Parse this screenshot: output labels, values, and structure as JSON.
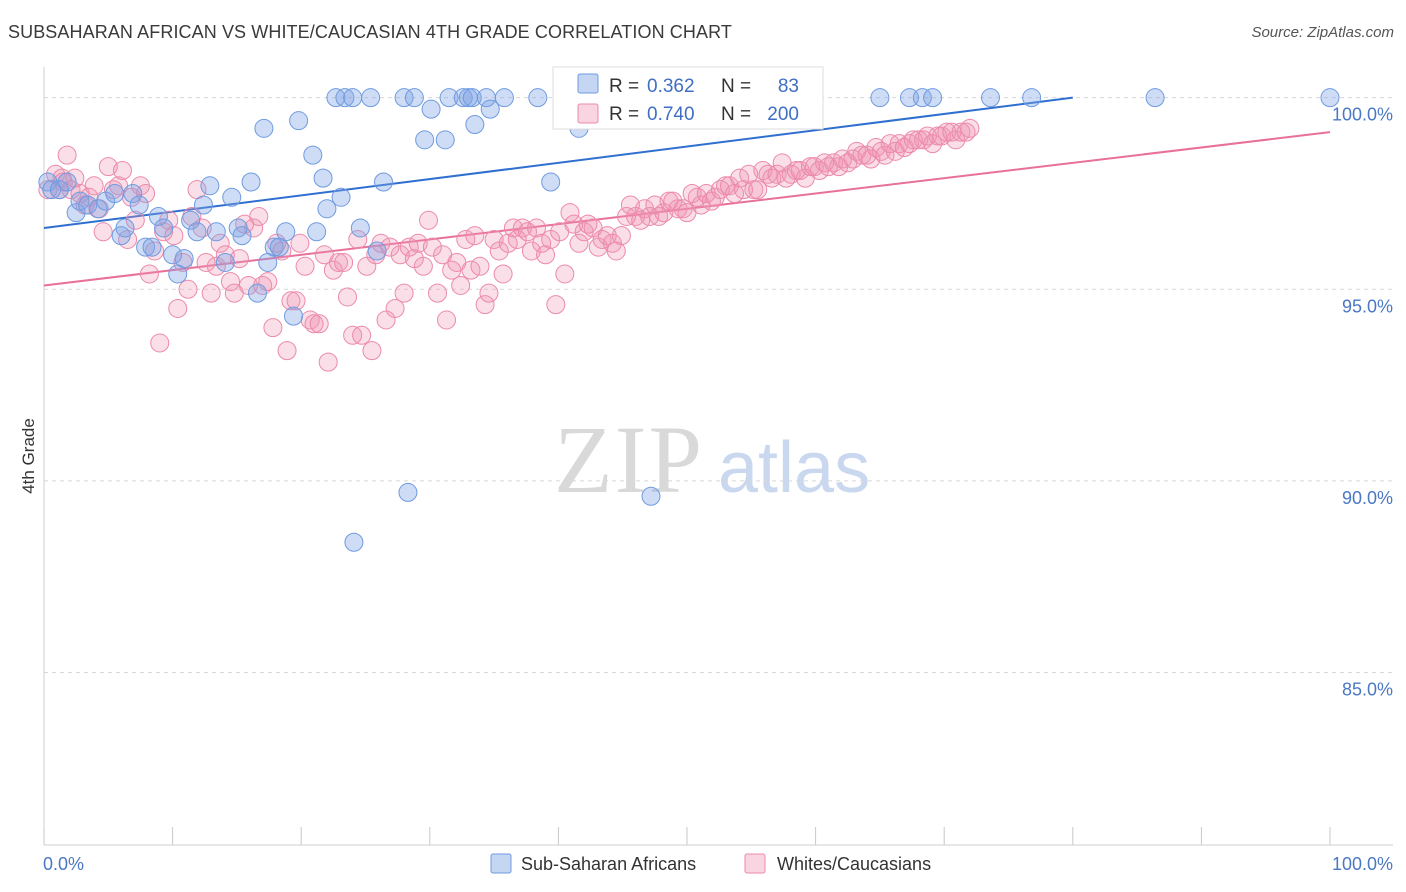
{
  "title": "SUBSAHARAN AFRICAN VS WHITE/CAUCASIAN 4TH GRADE CORRELATION CHART",
  "source": "Source: ZipAtlas.com",
  "watermark": {
    "zip": "ZIP",
    "atlas": "atlas"
  },
  "colors": {
    "blue": "#6f9be0",
    "blue_fill": "rgba(126,164,228,0.38)",
    "blue_line": "#2f6fd0",
    "pink": "#ec8aaa",
    "pink_fill": "rgba(240,150,180,0.30)",
    "pink_line": "#e8709a",
    "tick_label": "#4a78c4",
    "grid": "#d8d8d8"
  },
  "chart_data": {
    "type": "scatter",
    "xlabel": "",
    "ylabel": "4th Grade",
    "xlim": [
      0,
      100
    ],
    "ylim": [
      80.5,
      100.8
    ],
    "x_tick_labels": [
      "0.0%",
      "100.0%"
    ],
    "y_ticks": [
      85.0,
      90.0,
      95.0,
      100.0
    ],
    "y_tick_labels": [
      "85.0%",
      "90.0%",
      "95.0%",
      "100.0%"
    ],
    "grid": true,
    "legend": {
      "placement": "top-center",
      "entries": [
        {
          "r_label": "R =",
          "r_value": "0.362",
          "n_label": "N =",
          "n_value": "83"
        },
        {
          "r_label": "R =",
          "r_value": "0.740",
          "n_label": "N =",
          "n_value": "200"
        }
      ]
    },
    "series": [
      {
        "name": "Sub-Saharan Africans",
        "trend": {
          "x": [
            0,
            80
          ],
          "y": [
            96.6,
            100.0
          ]
        },
        "points": [
          [
            0.3,
            97.8
          ],
          [
            0.6,
            97.6
          ],
          [
            1.2,
            97.6
          ],
          [
            1.8,
            97.8
          ],
          [
            2.5,
            97.0
          ],
          [
            2.8,
            97.3
          ],
          [
            3.4,
            97.2
          ],
          [
            4.2,
            97.1
          ],
          [
            4.8,
            97.3
          ],
          [
            5.5,
            97.5
          ],
          [
            6.0,
            96.4
          ],
          [
            6.3,
            96.6
          ],
          [
            6.9,
            97.5
          ],
          [
            7.4,
            97.2
          ],
          [
            7.9,
            96.1
          ],
          [
            8.4,
            96.1
          ],
          [
            8.9,
            96.9
          ],
          [
            9.3,
            96.6
          ],
          [
            10.0,
            95.9
          ],
          [
            10.4,
            95.4
          ],
          [
            10.9,
            95.8
          ],
          [
            11.4,
            96.8
          ],
          [
            11.9,
            96.5
          ],
          [
            12.4,
            97.2
          ],
          [
            12.9,
            97.7
          ],
          [
            13.4,
            96.5
          ],
          [
            14.1,
            95.7
          ],
          [
            14.6,
            97.4
          ],
          [
            15.1,
            96.6
          ],
          [
            15.4,
            96.4
          ],
          [
            16.1,
            97.8
          ],
          [
            16.6,
            94.9
          ],
          [
            17.1,
            99.2
          ],
          [
            17.4,
            95.7
          ],
          [
            17.9,
            96.1
          ],
          [
            18.3,
            96.1
          ],
          [
            18.8,
            96.5
          ],
          [
            19.4,
            94.3
          ],
          [
            19.8,
            99.4
          ],
          [
            20.9,
            98.5
          ],
          [
            21.2,
            96.5
          ],
          [
            21.7,
            97.9
          ],
          [
            22.0,
            97.1
          ],
          [
            22.7,
            100.0
          ],
          [
            23.1,
            97.4
          ],
          [
            23.4,
            100.0
          ],
          [
            24.0,
            100.0
          ],
          [
            24.1,
            88.4
          ],
          [
            24.6,
            96.6
          ],
          [
            25.4,
            100.0
          ],
          [
            25.9,
            96.0
          ],
          [
            26.4,
            97.8
          ],
          [
            28.0,
            100.0
          ],
          [
            28.3,
            89.7
          ],
          [
            28.8,
            100.0
          ],
          [
            29.6,
            98.9
          ],
          [
            30.1,
            99.7
          ],
          [
            31.2,
            98.9
          ],
          [
            31.5,
            100.0
          ],
          [
            32.6,
            100.0
          ],
          [
            33.0,
            100.0
          ],
          [
            33.3,
            100.0
          ],
          [
            33.5,
            99.3
          ],
          [
            34.4,
            100.0
          ],
          [
            34.7,
            99.7
          ],
          [
            35.8,
            100.0
          ],
          [
            38.4,
            100.0
          ],
          [
            39.4,
            97.8
          ],
          [
            41.6,
            99.2
          ],
          [
            44.4,
            100.0
          ],
          [
            47.2,
            89.6
          ],
          [
            53.1,
            100.0
          ],
          [
            55.8,
            100.0
          ],
          [
            57.3,
            100.0
          ],
          [
            58.7,
            100.0
          ],
          [
            65.0,
            100.0
          ],
          [
            67.3,
            100.0
          ],
          [
            68.3,
            100.0
          ],
          [
            69.1,
            100.0
          ],
          [
            73.6,
            100.0
          ],
          [
            76.8,
            100.0
          ],
          [
            86.4,
            100.0
          ],
          [
            100.0,
            100.0
          ]
        ]
      },
      {
        "name": "Whites/Caucasians",
        "trend": {
          "x": [
            0,
            100
          ],
          "y": [
            95.1,
            99.1
          ]
        },
        "points": [
          [
            0.3,
            97.6
          ],
          [
            0.9,
            98.0
          ],
          [
            1.2,
            97.6
          ],
          [
            1.4,
            97.9
          ],
          [
            1.5,
            97.8
          ],
          [
            1.8,
            98.5
          ],
          [
            2.1,
            97.6
          ],
          [
            2.4,
            97.9
          ],
          [
            2.8,
            97.5
          ],
          [
            3.2,
            97.2
          ],
          [
            3.5,
            97.4
          ],
          [
            3.9,
            97.7
          ],
          [
            4.3,
            97.1
          ],
          [
            4.6,
            96.5
          ],
          [
            5.0,
            98.2
          ],
          [
            5.4,
            97.6
          ],
          [
            5.8,
            97.7
          ],
          [
            6.1,
            98.1
          ],
          [
            6.5,
            96.3
          ],
          [
            6.8,
            97.4
          ],
          [
            7.1,
            96.8
          ],
          [
            7.5,
            97.7
          ],
          [
            7.9,
            97.5
          ],
          [
            8.2,
            95.4
          ],
          [
            8.6,
            96.0
          ],
          [
            9.0,
            93.6
          ],
          [
            9.3,
            96.5
          ],
          [
            9.7,
            96.8
          ],
          [
            10.1,
            96.4
          ],
          [
            10.4,
            94.5
          ],
          [
            10.8,
            95.7
          ],
          [
            11.2,
            95.0
          ],
          [
            11.5,
            96.9
          ],
          [
            11.9,
            97.6
          ],
          [
            12.3,
            96.6
          ],
          [
            12.6,
            95.7
          ],
          [
            13.0,
            94.9
          ],
          [
            13.4,
            95.6
          ],
          [
            13.7,
            96.2
          ],
          [
            14.1,
            95.9
          ],
          [
            14.5,
            95.2
          ],
          [
            14.8,
            94.9
          ],
          [
            15.2,
            95.8
          ],
          [
            15.6,
            96.7
          ],
          [
            15.9,
            95.1
          ],
          [
            16.3,
            96.6
          ],
          [
            16.7,
            96.9
          ],
          [
            17.0,
            95.1
          ],
          [
            17.4,
            95.2
          ],
          [
            17.8,
            94.0
          ],
          [
            18.1,
            96.2
          ],
          [
            18.5,
            96.0
          ],
          [
            18.9,
            93.4
          ],
          [
            19.2,
            94.7
          ],
          [
            19.6,
            94.7
          ],
          [
            19.9,
            96.2
          ],
          [
            20.3,
            95.6
          ],
          [
            20.7,
            94.2
          ],
          [
            21.0,
            94.1
          ],
          [
            21.4,
            94.1
          ],
          [
            21.8,
            95.9
          ],
          [
            22.1,
            93.1
          ],
          [
            22.5,
            95.5
          ],
          [
            22.9,
            95.7
          ],
          [
            23.3,
            95.7
          ],
          [
            23.6,
            94.8
          ],
          [
            24.0,
            93.8
          ],
          [
            24.4,
            96.3
          ],
          [
            24.7,
            93.8
          ],
          [
            25.1,
            95.6
          ],
          [
            25.5,
            93.4
          ],
          [
            25.8,
            95.9
          ],
          [
            26.2,
            96.2
          ],
          [
            26.6,
            94.2
          ],
          [
            26.9,
            96.1
          ],
          [
            27.3,
            94.5
          ],
          [
            27.7,
            95.9
          ],
          [
            28.0,
            94.9
          ],
          [
            28.4,
            96.1
          ],
          [
            28.8,
            95.8
          ],
          [
            29.1,
            96.2
          ],
          [
            29.5,
            95.6
          ],
          [
            29.9,
            96.8
          ],
          [
            30.2,
            96.1
          ],
          [
            30.6,
            94.9
          ],
          [
            31.0,
            95.9
          ],
          [
            31.3,
            94.2
          ],
          [
            31.7,
            95.5
          ],
          [
            32.1,
            95.7
          ],
          [
            32.4,
            95.1
          ],
          [
            32.8,
            96.3
          ],
          [
            33.2,
            95.5
          ],
          [
            33.5,
            96.4
          ],
          [
            33.9,
            95.6
          ],
          [
            34.3,
            94.6
          ],
          [
            34.6,
            94.9
          ],
          [
            35.0,
            96.3
          ],
          [
            35.4,
            96.0
          ],
          [
            35.7,
            95.4
          ],
          [
            36.1,
            96.2
          ],
          [
            36.5,
            96.6
          ],
          [
            36.8,
            96.3
          ],
          [
            37.2,
            96.6
          ],
          [
            37.6,
            96.5
          ],
          [
            37.9,
            96.0
          ],
          [
            38.3,
            96.6
          ],
          [
            38.7,
            96.2
          ],
          [
            39.0,
            95.9
          ],
          [
            39.4,
            96.3
          ],
          [
            39.8,
            94.6
          ],
          [
            40.1,
            96.5
          ],
          [
            40.5,
            95.4
          ],
          [
            40.9,
            97.0
          ],
          [
            41.2,
            96.7
          ],
          [
            41.6,
            96.2
          ],
          [
            42.0,
            96.5
          ],
          [
            42.3,
            96.7
          ],
          [
            42.7,
            96.6
          ],
          [
            43.1,
            96.1
          ],
          [
            43.4,
            96.3
          ],
          [
            43.8,
            96.4
          ],
          [
            44.2,
            96.2
          ],
          [
            44.5,
            96.0
          ],
          [
            44.9,
            96.4
          ],
          [
            45.3,
            96.9
          ],
          [
            45.6,
            97.2
          ],
          [
            46.0,
            96.9
          ],
          [
            46.4,
            96.8
          ],
          [
            46.7,
            97.1
          ],
          [
            47.1,
            96.9
          ],
          [
            47.5,
            97.2
          ],
          [
            47.8,
            96.9
          ],
          [
            48.2,
            97.0
          ],
          [
            48.6,
            97.3
          ],
          [
            48.9,
            97.3
          ],
          [
            49.3,
            97.1
          ],
          [
            49.7,
            97.1
          ],
          [
            50.0,
            97.0
          ],
          [
            50.4,
            97.5
          ],
          [
            50.8,
            97.4
          ],
          [
            51.1,
            97.2
          ],
          [
            51.5,
            97.5
          ],
          [
            51.9,
            97.3
          ],
          [
            52.2,
            97.4
          ],
          [
            52.6,
            97.6
          ],
          [
            53.0,
            97.7
          ],
          [
            53.3,
            97.7
          ],
          [
            53.7,
            97.5
          ],
          [
            54.1,
            97.9
          ],
          [
            54.4,
            97.6
          ],
          [
            54.8,
            98.0
          ],
          [
            55.2,
            97.6
          ],
          [
            55.5,
            97.6
          ],
          [
            55.9,
            98.1
          ],
          [
            56.3,
            98.0
          ],
          [
            56.6,
            97.9
          ],
          [
            57.0,
            98.0
          ],
          [
            57.4,
            98.3
          ],
          [
            57.7,
            97.9
          ],
          [
            58.1,
            98.0
          ],
          [
            58.5,
            98.1
          ],
          [
            58.8,
            98.1
          ],
          [
            59.2,
            97.9
          ],
          [
            59.6,
            98.2
          ],
          [
            59.9,
            98.2
          ],
          [
            60.3,
            98.1
          ],
          [
            60.7,
            98.3
          ],
          [
            61.0,
            98.2
          ],
          [
            61.4,
            98.3
          ],
          [
            61.8,
            98.2
          ],
          [
            62.1,
            98.4
          ],
          [
            62.5,
            98.3
          ],
          [
            62.9,
            98.4
          ],
          [
            63.2,
            98.6
          ],
          [
            63.6,
            98.5
          ],
          [
            64.0,
            98.5
          ],
          [
            64.3,
            98.4
          ],
          [
            64.7,
            98.7
          ],
          [
            65.1,
            98.6
          ],
          [
            65.4,
            98.5
          ],
          [
            65.8,
            98.8
          ],
          [
            66.2,
            98.6
          ],
          [
            66.5,
            98.8
          ],
          [
            66.9,
            98.7
          ],
          [
            67.3,
            98.8
          ],
          [
            67.6,
            98.9
          ],
          [
            68.0,
            98.9
          ],
          [
            68.4,
            98.9
          ],
          [
            68.7,
            99.0
          ],
          [
            69.1,
            98.8
          ],
          [
            69.5,
            99.0
          ],
          [
            69.8,
            99.0
          ],
          [
            70.2,
            99.1
          ],
          [
            70.6,
            99.1
          ],
          [
            70.9,
            98.9
          ],
          [
            71.3,
            99.1
          ],
          [
            71.7,
            99.1
          ],
          [
            72.0,
            99.2
          ]
        ]
      }
    ]
  },
  "bottom_legend": [
    {
      "label": "Sub-Saharan Africans"
    },
    {
      "label": "Whites/Caucasians"
    }
  ]
}
